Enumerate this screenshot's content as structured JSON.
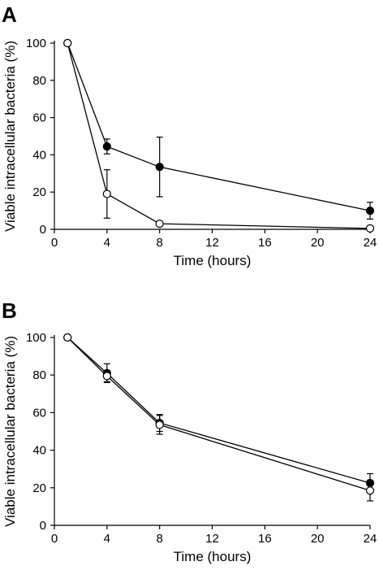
{
  "chart_data": [
    {
      "type": "line",
      "panel_label": "A",
      "xlabel": "Time (hours)",
      "ylabel": "Viable intracellular bacteria (%)",
      "xlim": [
        0,
        24
      ],
      "ylim": [
        0,
        100
      ],
      "x_ticks": [
        0,
        4,
        8,
        12,
        16,
        20,
        24
      ],
      "y_ticks": [
        0,
        20,
        40,
        60,
        80,
        100
      ],
      "grid": false,
      "series": [
        {
          "marker": "filled-circle",
          "x": [
            1,
            4,
            8,
            24
          ],
          "y": [
            100,
            44.5,
            33.5,
            10
          ],
          "err": [
            0,
            4,
            16,
            4.5
          ]
        },
        {
          "marker": "open-circle",
          "x": [
            1,
            4,
            8,
            24
          ],
          "y": [
            100,
            19,
            3,
            0.5
          ],
          "err": [
            0,
            13,
            0,
            0
          ]
        }
      ]
    },
    {
      "type": "line",
      "panel_label": "B",
      "xlabel": "Time (hours)",
      "ylabel": "Viable intracellular bacteria (%)",
      "xlim": [
        0,
        24
      ],
      "ylim": [
        0,
        100
      ],
      "x_ticks": [
        0,
        4,
        8,
        12,
        16,
        20,
        24
      ],
      "y_ticks": [
        0,
        20,
        40,
        60,
        80,
        100
      ],
      "grid": false,
      "series": [
        {
          "marker": "filled-circle",
          "x": [
            1,
            4,
            8,
            24
          ],
          "y": [
            100,
            81,
            54.5,
            22.5
          ],
          "err": [
            0,
            5,
            4.5,
            5
          ]
        },
        {
          "marker": "open-circle",
          "x": [
            1,
            4,
            8,
            24
          ],
          "y": [
            100,
            79.5,
            53.5,
            18.5
          ],
          "err": [
            0,
            3,
            5,
            5.5
          ]
        }
      ]
    }
  ]
}
